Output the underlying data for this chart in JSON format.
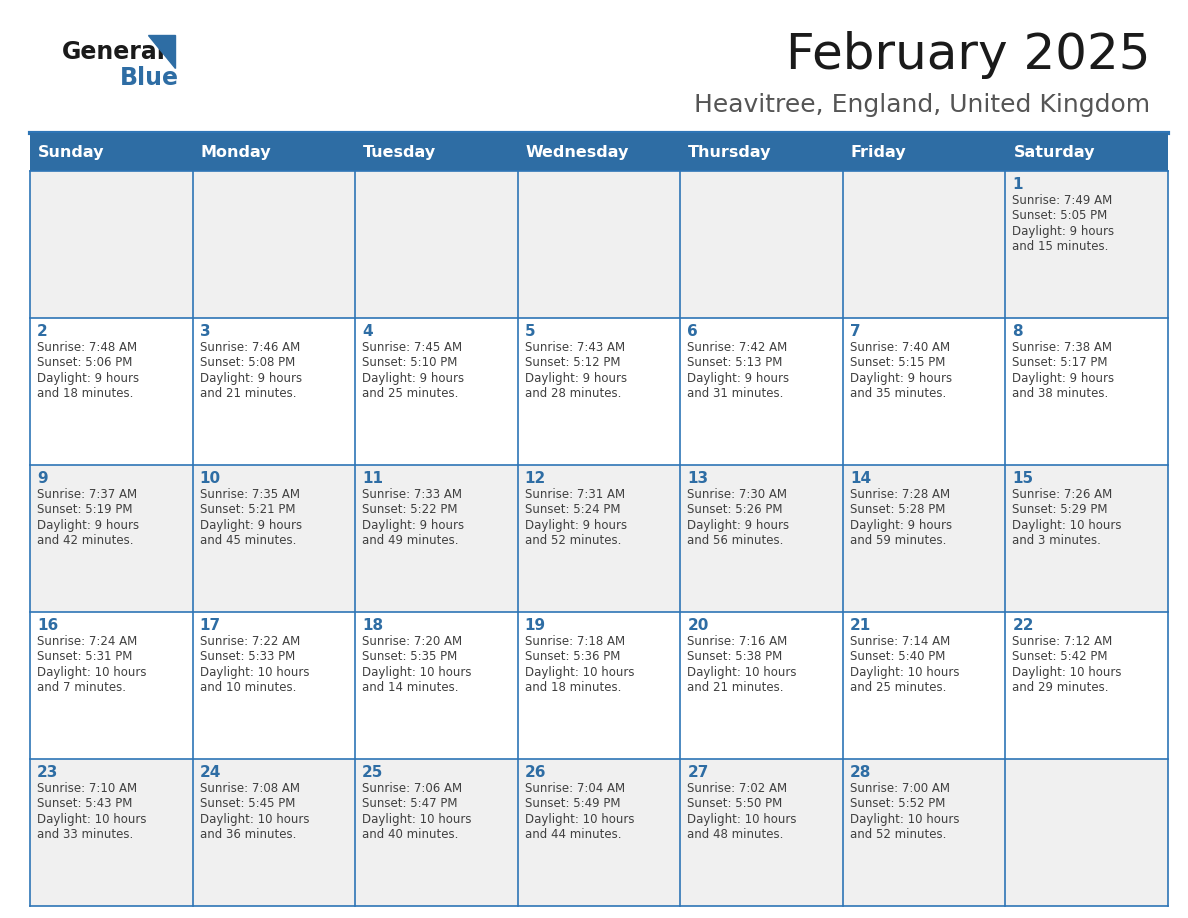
{
  "title": "February 2025",
  "subtitle": "Heavitree, England, United Kingdom",
  "days_of_week": [
    "Sunday",
    "Monday",
    "Tuesday",
    "Wednesday",
    "Thursday",
    "Friday",
    "Saturday"
  ],
  "header_bg": "#2E6DA4",
  "header_text": "#FFFFFF",
  "cell_bg_light": "#F0F0F0",
  "cell_bg_white": "#FFFFFF",
  "border_color": "#2E75B6",
  "text_color": "#404040",
  "day_num_color": "#2E6DA4",
  "calendar_data": [
    [
      null,
      null,
      null,
      null,
      null,
      null,
      {
        "day": 1,
        "sunrise": "7:49 AM",
        "sunset": "5:05 PM",
        "daylight": "9 hours",
        "daylight2": "and 15 minutes."
      }
    ],
    [
      {
        "day": 2,
        "sunrise": "7:48 AM",
        "sunset": "5:06 PM",
        "daylight": "9 hours",
        "daylight2": "and 18 minutes."
      },
      {
        "day": 3,
        "sunrise": "7:46 AM",
        "sunset": "5:08 PM",
        "daylight": "9 hours",
        "daylight2": "and 21 minutes."
      },
      {
        "day": 4,
        "sunrise": "7:45 AM",
        "sunset": "5:10 PM",
        "daylight": "9 hours",
        "daylight2": "and 25 minutes."
      },
      {
        "day": 5,
        "sunrise": "7:43 AM",
        "sunset": "5:12 PM",
        "daylight": "9 hours",
        "daylight2": "and 28 minutes."
      },
      {
        "day": 6,
        "sunrise": "7:42 AM",
        "sunset": "5:13 PM",
        "daylight": "9 hours",
        "daylight2": "and 31 minutes."
      },
      {
        "day": 7,
        "sunrise": "7:40 AM",
        "sunset": "5:15 PM",
        "daylight": "9 hours",
        "daylight2": "and 35 minutes."
      },
      {
        "day": 8,
        "sunrise": "7:38 AM",
        "sunset": "5:17 PM",
        "daylight": "9 hours",
        "daylight2": "and 38 minutes."
      }
    ],
    [
      {
        "day": 9,
        "sunrise": "7:37 AM",
        "sunset": "5:19 PM",
        "daylight": "9 hours",
        "daylight2": "and 42 minutes."
      },
      {
        "day": 10,
        "sunrise": "7:35 AM",
        "sunset": "5:21 PM",
        "daylight": "9 hours",
        "daylight2": "and 45 minutes."
      },
      {
        "day": 11,
        "sunrise": "7:33 AM",
        "sunset": "5:22 PM",
        "daylight": "9 hours",
        "daylight2": "and 49 minutes."
      },
      {
        "day": 12,
        "sunrise": "7:31 AM",
        "sunset": "5:24 PM",
        "daylight": "9 hours",
        "daylight2": "and 52 minutes."
      },
      {
        "day": 13,
        "sunrise": "7:30 AM",
        "sunset": "5:26 PM",
        "daylight": "9 hours",
        "daylight2": "and 56 minutes."
      },
      {
        "day": 14,
        "sunrise": "7:28 AM",
        "sunset": "5:28 PM",
        "daylight": "9 hours",
        "daylight2": "and 59 minutes."
      },
      {
        "day": 15,
        "sunrise": "7:26 AM",
        "sunset": "5:29 PM",
        "daylight": "10 hours",
        "daylight2": "and 3 minutes."
      }
    ],
    [
      {
        "day": 16,
        "sunrise": "7:24 AM",
        "sunset": "5:31 PM",
        "daylight": "10 hours",
        "daylight2": "and 7 minutes."
      },
      {
        "day": 17,
        "sunrise": "7:22 AM",
        "sunset": "5:33 PM",
        "daylight": "10 hours",
        "daylight2": "and 10 minutes."
      },
      {
        "day": 18,
        "sunrise": "7:20 AM",
        "sunset": "5:35 PM",
        "daylight": "10 hours",
        "daylight2": "and 14 minutes."
      },
      {
        "day": 19,
        "sunrise": "7:18 AM",
        "sunset": "5:36 PM",
        "daylight": "10 hours",
        "daylight2": "and 18 minutes."
      },
      {
        "day": 20,
        "sunrise": "7:16 AM",
        "sunset": "5:38 PM",
        "daylight": "10 hours",
        "daylight2": "and 21 minutes."
      },
      {
        "day": 21,
        "sunrise": "7:14 AM",
        "sunset": "5:40 PM",
        "daylight": "10 hours",
        "daylight2": "and 25 minutes."
      },
      {
        "day": 22,
        "sunrise": "7:12 AM",
        "sunset": "5:42 PM",
        "daylight": "10 hours",
        "daylight2": "and 29 minutes."
      }
    ],
    [
      {
        "day": 23,
        "sunrise": "7:10 AM",
        "sunset": "5:43 PM",
        "daylight": "10 hours",
        "daylight2": "and 33 minutes."
      },
      {
        "day": 24,
        "sunrise": "7:08 AM",
        "sunset": "5:45 PM",
        "daylight": "10 hours",
        "daylight2": "and 36 minutes."
      },
      {
        "day": 25,
        "sunrise": "7:06 AM",
        "sunset": "5:47 PM",
        "daylight": "10 hours",
        "daylight2": "and 40 minutes."
      },
      {
        "day": 26,
        "sunrise": "7:04 AM",
        "sunset": "5:49 PM",
        "daylight": "10 hours",
        "daylight2": "and 44 minutes."
      },
      {
        "day": 27,
        "sunrise": "7:02 AM",
        "sunset": "5:50 PM",
        "daylight": "10 hours",
        "daylight2": "and 48 minutes."
      },
      {
        "day": 28,
        "sunrise": "7:00 AM",
        "sunset": "5:52 PM",
        "daylight": "10 hours",
        "daylight2": "and 52 minutes."
      },
      null
    ]
  ],
  "logo_text1": "General",
  "logo_text2": "Blue",
  "figsize": [
    11.88,
    9.18
  ],
  "dpi": 100
}
